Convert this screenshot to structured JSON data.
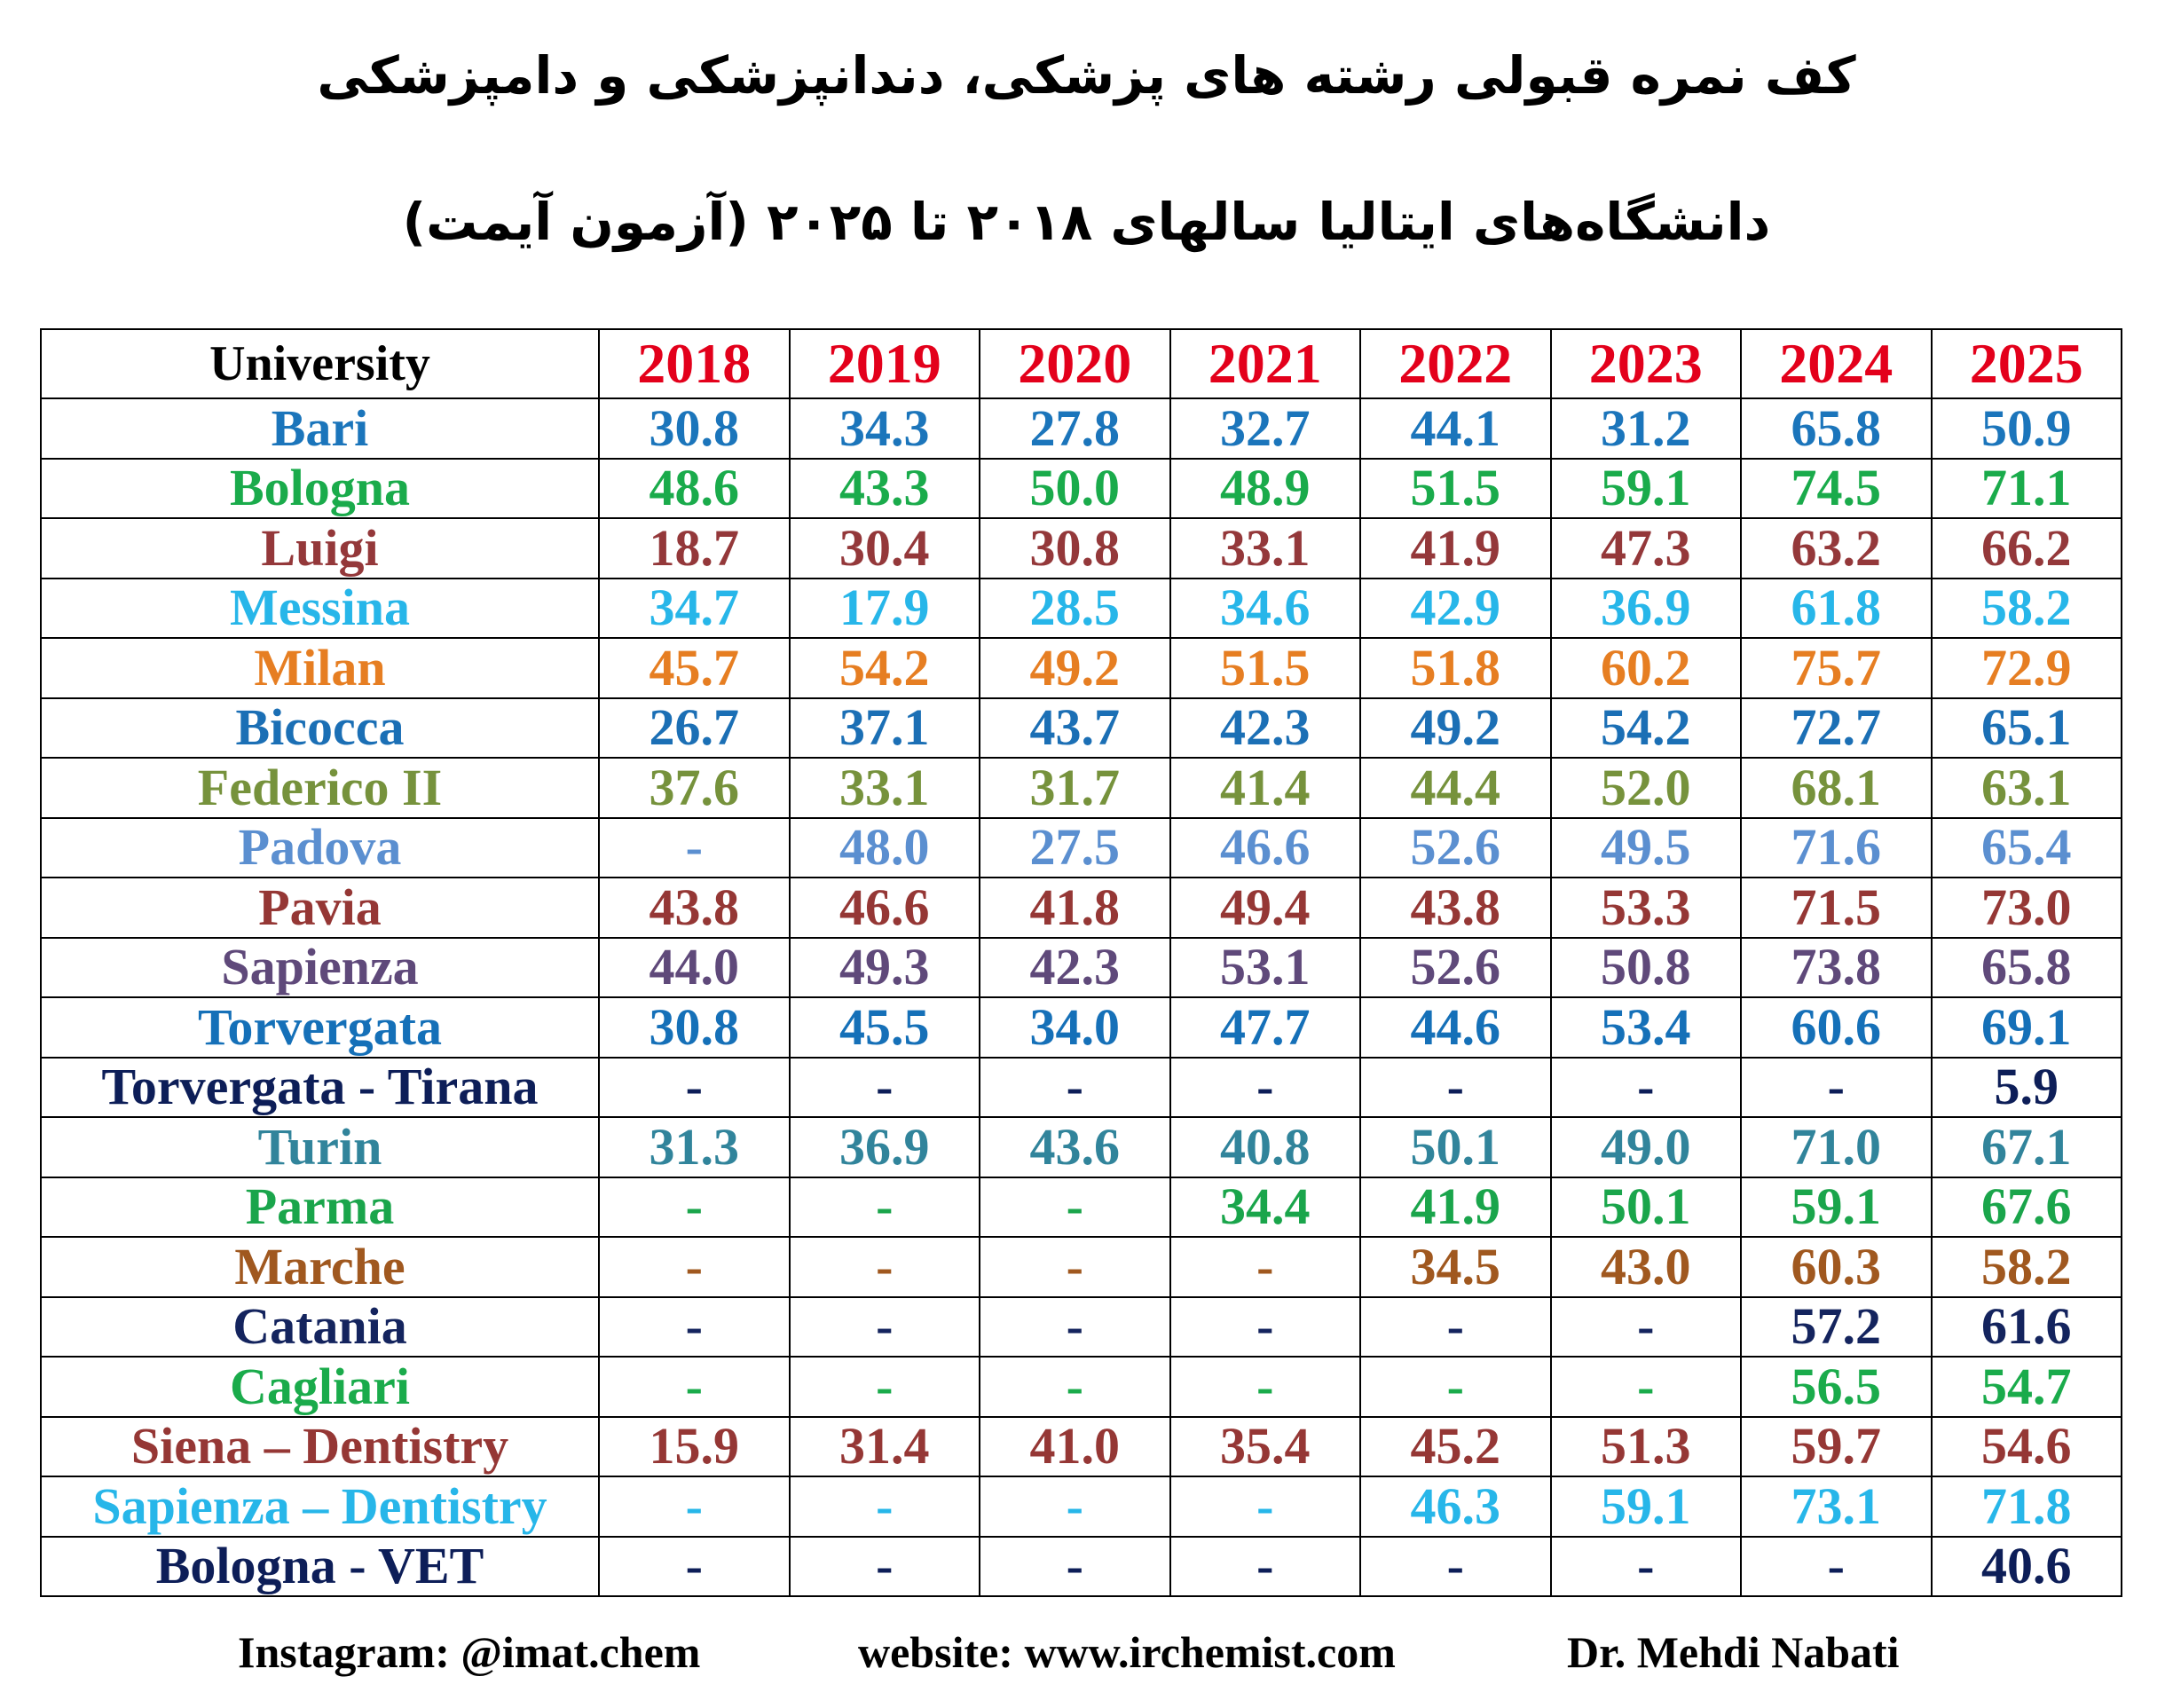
{
  "title_line1": "کف نمره قبولی رشته های پزشکی، دندانپزشکی و دامپزشکی",
  "title_line2": "دانشگاه‌های ایتالیا سالهای ۲۰۱۸ تا ۲۰۲۵ (آزمون آیمت)",
  "table": {
    "header_label": "University",
    "years": [
      "2018",
      "2019",
      "2020",
      "2021",
      "2022",
      "2023",
      "2024",
      "2025"
    ],
    "year_color": "#e3001b",
    "rows": [
      {
        "name": "Bari",
        "color": "#1b75bb",
        "values": [
          "30.8",
          "34.3",
          "27.8",
          "32.7",
          "44.1",
          "31.2",
          "65.8",
          "50.9"
        ]
      },
      {
        "name": "Bologna",
        "color": "#1aab4b",
        "values": [
          "48.6",
          "43.3",
          "50.0",
          "48.9",
          "51.5",
          "59.1",
          "74.5",
          "71.1"
        ]
      },
      {
        "name": "Luigi",
        "color": "#94383a",
        "values": [
          "18.7",
          "30.4",
          "30.8",
          "33.1",
          "41.9",
          "47.3",
          "63.2",
          "66.2"
        ]
      },
      {
        "name": "Messina",
        "color": "#27b6e9",
        "values": [
          "34.7",
          "17.9",
          "28.5",
          "34.6",
          "42.9",
          "36.9",
          "61.8",
          "58.2"
        ]
      },
      {
        "name": "Milan",
        "color": "#e67e22",
        "values": [
          "45.7",
          "54.2",
          "49.2",
          "51.5",
          "51.8",
          "60.2",
          "75.7",
          "72.9"
        ]
      },
      {
        "name": "Bicocca",
        "color": "#1b6fb5",
        "values": [
          "26.7",
          "37.1",
          "43.7",
          "42.3",
          "49.2",
          "54.2",
          "72.7",
          "65.1"
        ]
      },
      {
        "name": "Federico II",
        "color": "#76923c",
        "values": [
          "37.6",
          "33.1",
          "31.7",
          "41.4",
          "44.4",
          "52.0",
          "68.1",
          "63.1"
        ]
      },
      {
        "name": "Padova",
        "color": "#5b8fd0",
        "values": [
          "-",
          "48.0",
          "27.5",
          "46.6",
          "52.6",
          "49.5",
          "71.6",
          "65.4"
        ]
      },
      {
        "name": "Pavia",
        "color": "#953735",
        "values": [
          "43.8",
          "46.6",
          "41.8",
          "49.4",
          "43.8",
          "53.3",
          "71.5",
          "73.0"
        ]
      },
      {
        "name": "Sapienza",
        "color": "#5f497a",
        "values": [
          "44.0",
          "49.3",
          "42.3",
          "53.1",
          "52.6",
          "50.8",
          "73.8",
          "65.8"
        ]
      },
      {
        "name": "Torvergata",
        "color": "#1570b8",
        "values": [
          "30.8",
          "45.5",
          "34.0",
          "47.7",
          "44.6",
          "53.4",
          "60.6",
          "69.1"
        ]
      },
      {
        "name": "Torvergata - Tirana",
        "color": "#0d1e58",
        "values": [
          "-",
          "-",
          "-",
          "-",
          "-",
          "-",
          "-",
          "5.9"
        ]
      },
      {
        "name": "Turin",
        "color": "#31849b",
        "values": [
          "31.3",
          "36.9",
          "43.6",
          "40.8",
          "50.1",
          "49.0",
          "71.0",
          "67.1"
        ]
      },
      {
        "name": "Parma",
        "color": "#1aa54b",
        "values": [
          "-",
          "-",
          "-",
          "34.4",
          "41.9",
          "50.1",
          "59.1",
          "67.6"
        ]
      },
      {
        "name": "Marche",
        "color": "#a0581f",
        "values": [
          "-",
          "-",
          "-",
          "-",
          "34.5",
          "43.0",
          "60.3",
          "58.2"
        ]
      },
      {
        "name": "Catania",
        "color": "#14245e",
        "values": [
          "-",
          "-",
          "-",
          "-",
          "-",
          "-",
          "57.2",
          "61.6"
        ]
      },
      {
        "name": "Cagliari",
        "color": "#1aab4b",
        "values": [
          "-",
          "-",
          "-",
          "-",
          "-",
          "-",
          "56.5",
          "54.7"
        ]
      },
      {
        "name": "Siena – Dentistry",
        "color": "#953735",
        "values": [
          "15.9",
          "31.4",
          "41.0",
          "35.4",
          "45.2",
          "51.3",
          "59.7",
          "54.6"
        ]
      },
      {
        "name": "Sapienza – Dentistry",
        "color": "#27b6e9",
        "values": [
          "-",
          "-",
          "-",
          "-",
          "46.3",
          "59.1",
          "73.1",
          "71.8"
        ]
      },
      {
        "name": "Bologna - VET",
        "color": "#0d1e58",
        "values": [
          "-",
          "-",
          "-",
          "-",
          "-",
          "-",
          "-",
          "40.6"
        ]
      }
    ]
  },
  "footer": {
    "instagram": "Instagram: @imat.chem",
    "website": "website: www.irchemist.com",
    "author": "Dr. Mehdi Nabati"
  }
}
